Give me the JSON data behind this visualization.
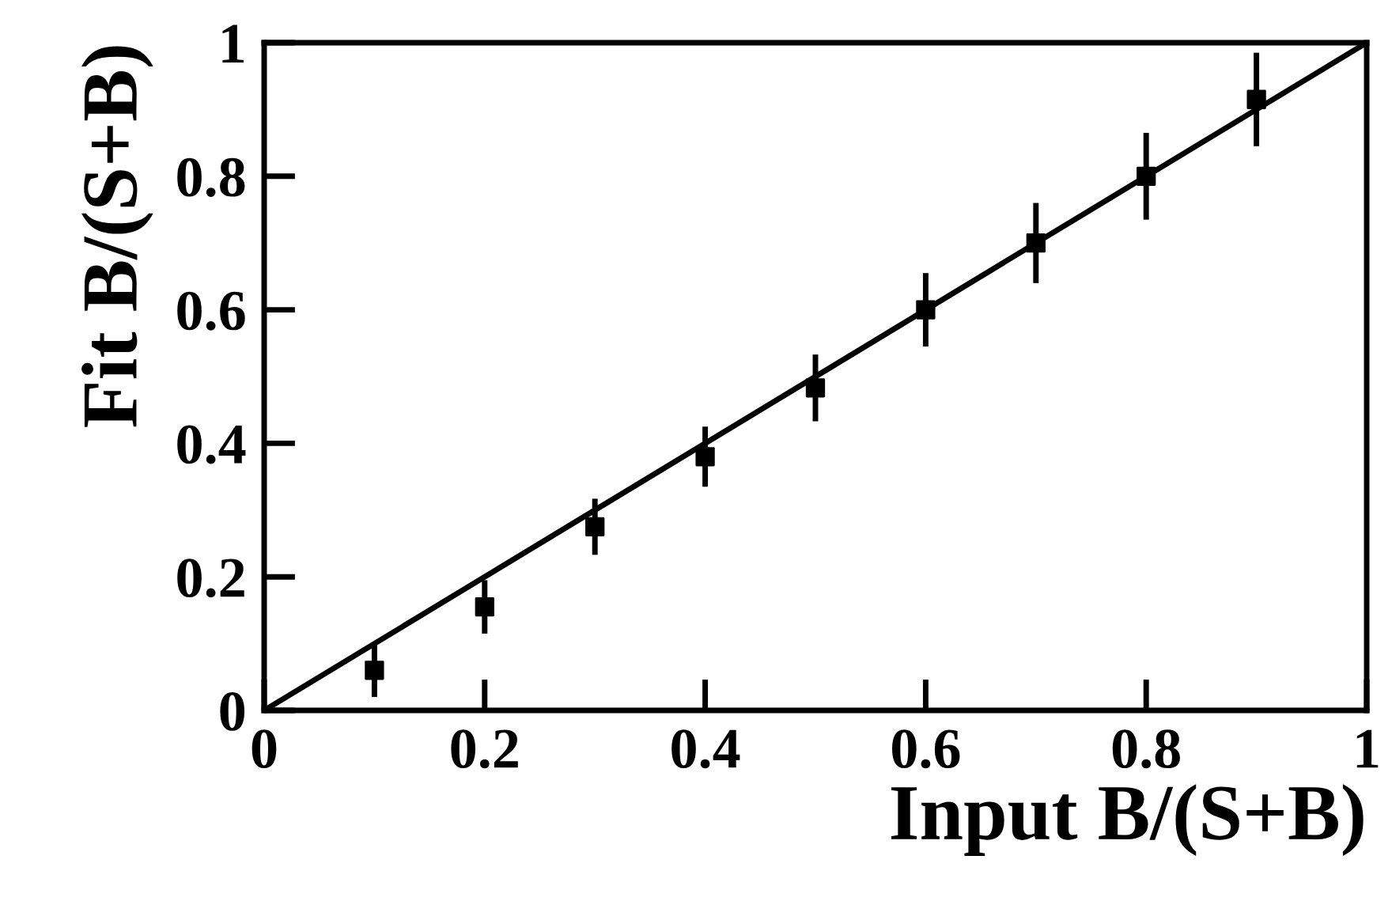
{
  "chart_data": {
    "type": "scatter",
    "xlabel": "Input B/(S+B)",
    "ylabel": "Fit B/(S+B)",
    "xlim": [
      0,
      1
    ],
    "ylim": [
      0,
      1
    ],
    "xticks": [
      0,
      0.2,
      0.4,
      0.6,
      0.8,
      1
    ],
    "yticks": [
      0,
      0.2,
      0.4,
      0.6,
      0.8,
      1
    ],
    "grid": false,
    "legend": false,
    "marker": "square",
    "series": [
      {
        "type": "scatter",
        "color": "#000000",
        "x": [
          0.1,
          0.2,
          0.3,
          0.4,
          0.5,
          0.6,
          0.7,
          0.8,
          0.9
        ],
        "values": [
          0.06,
          0.155,
          0.275,
          0.38,
          0.483,
          0.6,
          0.7,
          0.8,
          0.915
        ],
        "errors": [
          0.04,
          0.04,
          0.042,
          0.045,
          0.05,
          0.055,
          0.06,
          0.065,
          0.07
        ]
      },
      {
        "type": "line",
        "color": "#000000",
        "x": [
          0,
          1
        ],
        "values": [
          0,
          1
        ],
        "line_style": "solid",
        "marker": "none"
      }
    ]
  }
}
